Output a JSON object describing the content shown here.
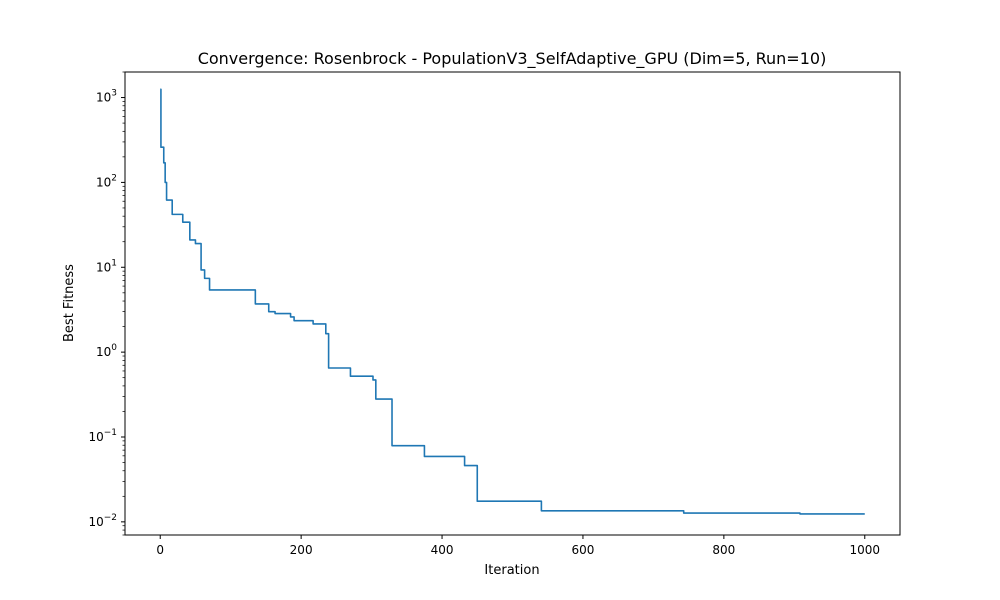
{
  "chart_data": {
    "type": "line",
    "title": "Convergence: Rosenbrock - PopulationV3_SelfAdaptive_GPU (Dim=5, Run=10)",
    "xlabel": "Iteration",
    "ylabel": "Best Fitness",
    "xlim": [
      -50,
      1050
    ],
    "ylim": [
      0.007,
      2000
    ],
    "yscale": "log",
    "grid": false,
    "x_ticks": [
      {
        "value": 0,
        "label": "0"
      },
      {
        "value": 200,
        "label": "200"
      },
      {
        "value": 400,
        "label": "400"
      },
      {
        "value": 600,
        "label": "600"
      },
      {
        "value": 800,
        "label": "800"
      },
      {
        "value": 1000,
        "label": "1000"
      }
    ],
    "y_ticks": [
      {
        "value": 0.01,
        "base": "10",
        "exp": "−2"
      },
      {
        "value": 0.1,
        "base": "10",
        "exp": "−1"
      },
      {
        "value": 1,
        "base": "10",
        "exp": "0"
      },
      {
        "value": 10,
        "base": "10",
        "exp": "1"
      },
      {
        "value": 100,
        "base": "10",
        "exp": "2"
      },
      {
        "value": 1000,
        "base": "10",
        "exp": "3"
      }
    ],
    "series": [
      {
        "color": "#1f77b4",
        "step": true,
        "points": [
          [
            0,
            1250
          ],
          [
            1,
            260
          ],
          [
            5,
            170
          ],
          [
            7,
            100
          ],
          [
            9,
            62
          ],
          [
            17,
            42
          ],
          [
            32,
            34
          ],
          [
            42,
            21
          ],
          [
            50,
            19
          ],
          [
            58,
            9.3
          ],
          [
            63,
            7.4
          ],
          [
            70,
            5.4
          ],
          [
            135,
            3.7
          ],
          [
            154,
            3.0
          ],
          [
            163,
            2.85
          ],
          [
            185,
            2.6
          ],
          [
            190,
            2.35
          ],
          [
            217,
            2.15
          ],
          [
            235,
            1.65
          ],
          [
            239,
            0.65
          ],
          [
            270,
            0.52
          ],
          [
            302,
            0.47
          ],
          [
            306,
            0.28
          ],
          [
            329,
            0.079
          ],
          [
            375,
            0.059
          ],
          [
            432,
            0.046
          ],
          [
            450,
            0.0175
          ],
          [
            541,
            0.0135
          ],
          [
            743,
            0.0127
          ],
          [
            908,
            0.0124
          ],
          [
            1000,
            0.0124
          ]
        ]
      }
    ]
  }
}
